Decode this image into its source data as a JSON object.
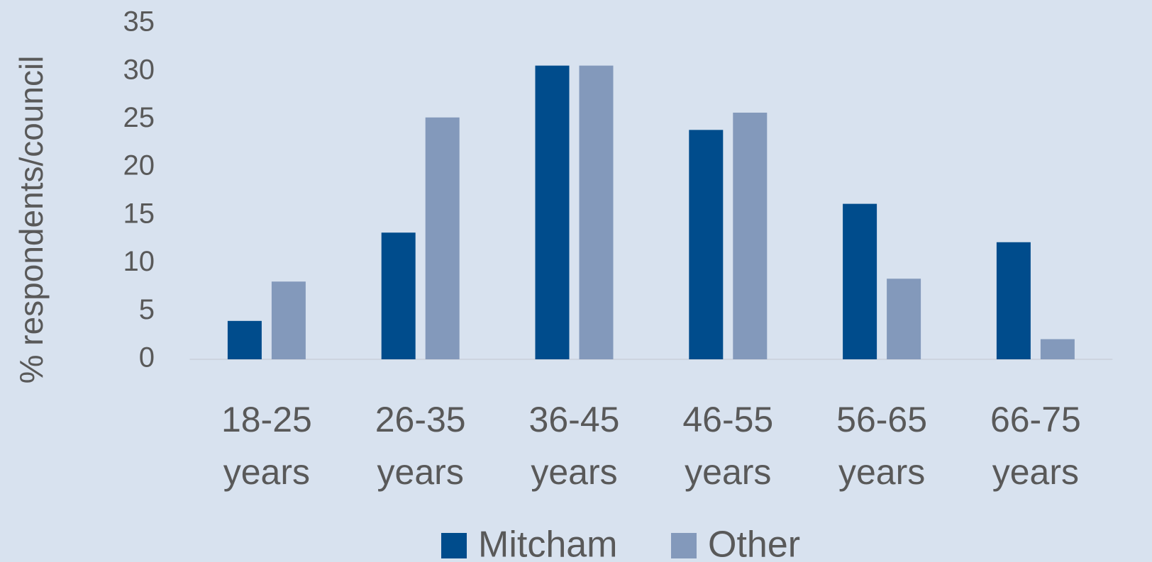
{
  "chart_data": {
    "type": "bar",
    "y_label": "% respondents/council",
    "categories": [
      "18-25 years",
      "26-35 years",
      "36-45 years",
      "46-55 years",
      "56-65 years",
      "66-75 years"
    ],
    "series": [
      {
        "name": "Mitcham",
        "color": "#004c8c",
        "values": [
          4.0,
          13.2,
          30.6,
          23.9,
          16.2,
          12.2
        ]
      },
      {
        "name": "Other",
        "color": "#8399bb",
        "values": [
          8.1,
          25.2,
          30.6,
          25.7,
          8.4,
          2.1
        ]
      }
    ],
    "ylim": [
      0,
      35
    ],
    "yticks": [
      0,
      5,
      10,
      15,
      20,
      25,
      30,
      35
    ],
    "grid": false
  }
}
